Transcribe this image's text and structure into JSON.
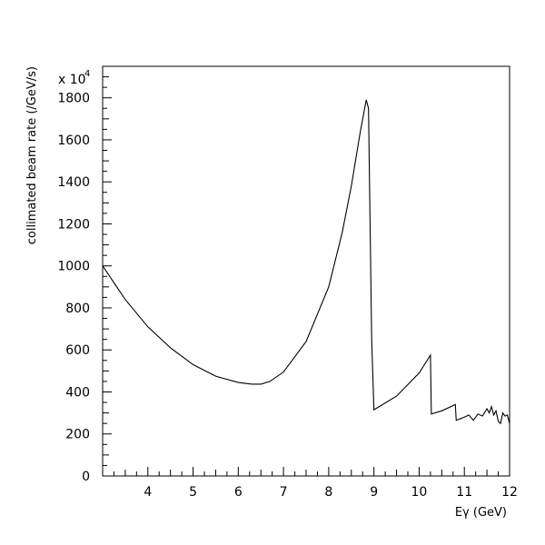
{
  "chart_data": {
    "type": "line",
    "title": "",
    "xlabel": "Eγ (GeV)",
    "ylabel": "collimated beam rate (/GeV/s)",
    "y_multiplier_label": "x 10",
    "y_multiplier_exp": "4",
    "xlim": [
      3,
      12
    ],
    "ylim": [
      0,
      1950
    ],
    "x_ticks": [
      4,
      5,
      6,
      7,
      8,
      9,
      10,
      11,
      12
    ],
    "y_ticks": [
      0,
      200,
      400,
      600,
      800,
      1000,
      1200,
      1400,
      1600,
      1800
    ],
    "grid": false,
    "series": [
      {
        "x": [
          3.0,
          3.5,
          4.0,
          4.5,
          5.0,
          5.5,
          6.0,
          6.3,
          6.5,
          6.7,
          7.0,
          7.5,
          8.0,
          8.3,
          8.5,
          8.7,
          8.83,
          8.88,
          8.95,
          9.0,
          9.5,
          10.0,
          10.25,
          10.27,
          10.5,
          10.8,
          10.82,
          11.0,
          11.1,
          11.2,
          11.3,
          11.4,
          11.5,
          11.55,
          11.6,
          11.65,
          11.7,
          11.75,
          11.8,
          11.85,
          11.9,
          11.95,
          12.0
        ],
        "y": [
          1000,
          840,
          710,
          610,
          530,
          475,
          445,
          437,
          437,
          450,
          495,
          640,
          900,
          1160,
          1380,
          1640,
          1790,
          1750,
          650,
          315,
          380,
          490,
          575,
          295,
          310,
          340,
          265,
          280,
          290,
          265,
          295,
          285,
          320,
          300,
          330,
          290,
          310,
          260,
          250,
          300,
          285,
          290,
          250
        ]
      }
    ]
  }
}
